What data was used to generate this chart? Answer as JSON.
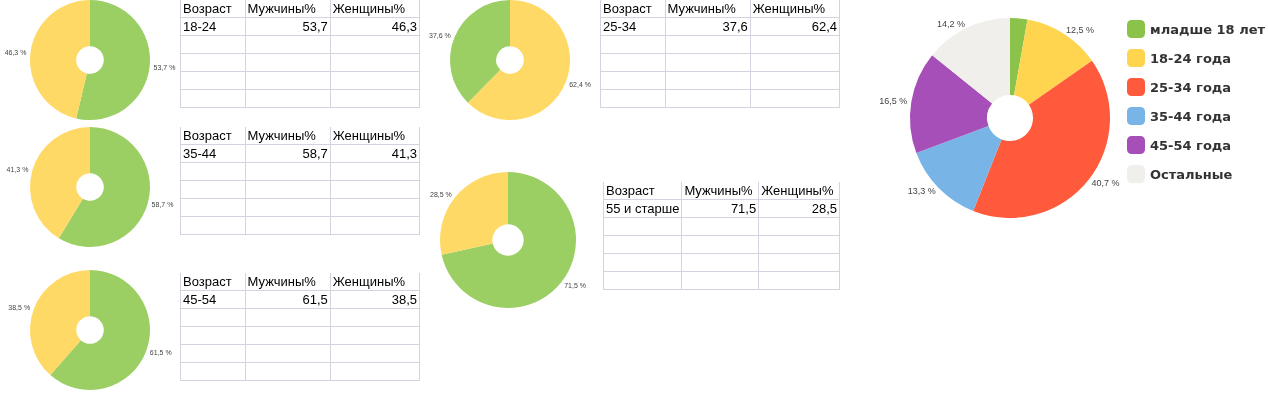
{
  "chart_data": [
    {
      "type": "donut",
      "categories": [
        null,
        null
      ],
      "values": [
        53.7,
        46.3
      ],
      "colors": [
        "#9bcf63",
        "#ffd966"
      ],
      "value_labels": [
        "53,7 %",
        "46,3 %"
      ],
      "legend": false,
      "annotations": [
        "Возраст",
        "Мужчины%",
        "Женщины%",
        "18-24",
        "53,7",
        "46,3"
      ]
    },
    {
      "type": "donut",
      "categories": [
        null,
        null
      ],
      "values": [
        62.4,
        37.6
      ],
      "colors": [
        "#ffd966",
        "#9bcf63"
      ],
      "value_labels": [
        "62,4 %",
        "37,6 %"
      ],
      "legend": false,
      "annotations": [
        "Возраст",
        "Мужчины%",
        "Женщины%",
        "25-34",
        "37,6",
        "62,4"
      ]
    },
    {
      "type": "donut",
      "categories": [
        null,
        null
      ],
      "values": [
        58.7,
        41.3
      ],
      "colors": [
        "#9bcf63",
        "#ffd966"
      ],
      "value_labels": [
        "58,7 %",
        "41,3 %"
      ],
      "legend": false,
      "annotations": [
        "Возраст",
        "Мужчины%",
        "Женщины%",
        "35-44",
        "58,7",
        "41,3"
      ]
    },
    {
      "type": "donut",
      "categories": [
        null,
        null
      ],
      "values": [
        71.5,
        28.5
      ],
      "colors": [
        "#9bcf63",
        "#ffd966"
      ],
      "value_labels": [
        "71,5 %",
        "28,5 %"
      ],
      "legend": false,
      "annotations": [
        "Возраст",
        "Мужчины%",
        "Женщины%",
        "55 и старше",
        "71,5",
        "28,5"
      ]
    },
    {
      "type": "donut",
      "categories": [
        null,
        null
      ],
      "values": [
        61.5,
        38.5
      ],
      "colors": [
        "#9bcf63",
        "#ffd966"
      ],
      "value_labels": [
        "61,5 %",
        "38,5 %"
      ],
      "legend": false,
      "annotations": [
        "Возраст",
        "Мужчины%",
        "Женщины%",
        "45-54",
        "61,5",
        "38,5"
      ]
    },
    {
      "type": "donut",
      "categories": [
        "младше 18 лет",
        "18-24 года",
        "25-34 года",
        "35-44 года",
        "45-54 года",
        "Остальные"
      ],
      "values": [
        2.8,
        12.5,
        40.7,
        13.3,
        16.5,
        14.2
      ],
      "colors": [
        "#8bc34a",
        "#ffd54f",
        "#ff5a3c",
        "#78b4e6",
        "#a64fb8",
        "#f1efec"
      ],
      "value_labels": [
        null,
        "12,5 %",
        "40,7 %",
        "13,3 %",
        "16,5 %",
        "14,2 %"
      ],
      "legend": "right"
    }
  ]
}
